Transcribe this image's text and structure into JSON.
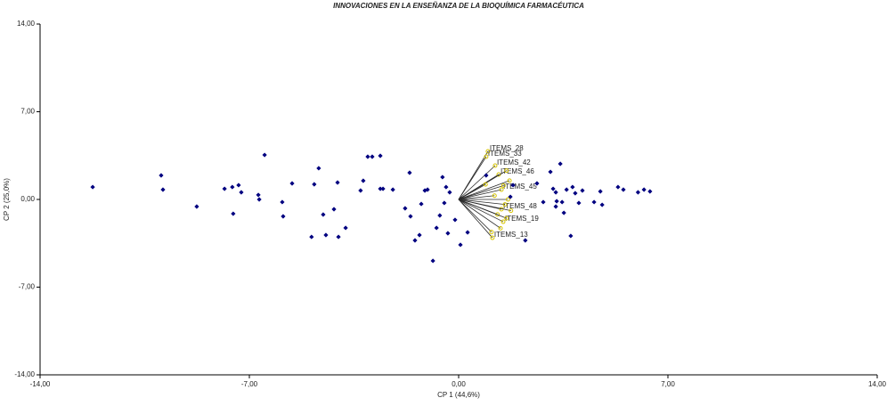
{
  "chart_data": {
    "type": "biplot",
    "title": "INNOVACIONES EN LA ENSEÑANZA DE LA BIOQUÍMICA FARMACÉUTICA",
    "x_label": "CP 1 (44,6%)",
    "y_label": "CP 2 (25,0%)",
    "xlim": [
      -14,
      14
    ],
    "ylim": [
      -14,
      14
    ],
    "xticks": [
      {
        "value": -14,
        "label": "-14,00"
      },
      {
        "value": -7,
        "label": "-7,00"
      },
      {
        "value": 0,
        "label": "0,00"
      },
      {
        "value": 7,
        "label": "7,00"
      },
      {
        "value": 14,
        "label": "14,00"
      }
    ],
    "yticks": [
      {
        "value": -14,
        "label": "-14,00"
      },
      {
        "value": -7,
        "label": "-7,00"
      },
      {
        "value": 0,
        "label": "0,00"
      },
      {
        "value": 7,
        "label": "7,00"
      },
      {
        "value": 14,
        "label": "14,00"
      }
    ],
    "points": {
      "color": "#000080",
      "x": [
        -12.24,
        -9.95,
        -9.89,
        -8.76,
        -7.83,
        -7.57,
        -7.54,
        -7.36,
        -7.27,
        -6.49,
        -6.7,
        -6.67,
        -5.9,
        -5.87,
        -5.57,
        -4.92,
        -4.83,
        -4.68,
        -4.53,
        -4.44,
        -4.17,
        -4.05,
        -4.02,
        -3.78,
        -3.28,
        -3.19,
        -3.04,
        -2.89,
        -2.62,
        -2.62,
        -2.53,
        -2.2,
        -1.79,
        -1.64,
        -1.61,
        -1.46,
        -1.31,
        -1.25,
        -1.13,
        -1.04,
        -0.86,
        -0.74,
        -0.63,
        -0.54,
        -0.48,
        -0.42,
        -0.36,
        -0.3,
        -0.12,
        0.06,
        0.3,
        0.92,
        1.73,
        1.82,
        2.23,
        2.62,
        2.83,
        3.07,
        3.16,
        3.25,
        3.4,
        3.46,
        3.52,
        3.61,
        3.75,
        3.81,
        3.9,
        4.02,
        4.14,
        4.53,
        4.74,
        4.8,
        5.33,
        5.51,
        6.0,
        6.2,
        6.4,
        3.25,
        3.28
      ],
      "y": [
        0.99,
        1.92,
        0.78,
        -0.57,
        0.85,
        0.99,
        -1.14,
        1.14,
        0.57,
        3.55,
        0.36,
        0,
        -0.21,
        -1.35,
        1.28,
        -2.99,
        1.21,
        2.49,
        -1.21,
        -2.84,
        -0.78,
        1.35,
        -2.99,
        -2.27,
        0.71,
        1.49,
        3.41,
        3.41,
        3.48,
        0.85,
        0.85,
        0.78,
        -0.71,
        2.13,
        -1.35,
        -3.27,
        -2.84,
        -0.36,
        0.71,
        0.78,
        -4.9,
        -2.27,
        -1.28,
        1.78,
        -0.28,
        0.99,
        -2.7,
        0.57,
        -1.63,
        -3.62,
        -2.63,
        1.92,
        0.21,
        1.14,
        -3.27,
        1.28,
        -0.21,
        2.2,
        0.85,
        0.57,
        2.84,
        -0.21,
        -1.07,
        0.78,
        -2.91,
        0.99,
        0.5,
        -0.28,
        0.71,
        -0.21,
        0.64,
        -0.43,
        0.99,
        0.78,
        0.57,
        0.78,
        0.64,
        -0.57,
        -0.14
      ]
    },
    "vectors": {
      "color": "#2b2b2b",
      "marker_color": "#d6c400",
      "labels": [
        "ITEMS_28",
        "ITEMS_33",
        "ITEMS_42",
        "ITEMS_46",
        "ITEMS_45",
        "ITEMS_48",
        "ITEMS_19",
        "ITEMS_13",
        null,
        null,
        null,
        null,
        null,
        null,
        null,
        null,
        null,
        null,
        null,
        null
      ],
      "x": [
        0.98,
        0.92,
        1.22,
        1.34,
        1.43,
        1.43,
        1.49,
        1.13,
        1.6,
        1.7,
        1.5,
        1.2,
        1.65,
        1.55,
        1.3,
        1.75,
        1.6,
        1.4,
        1.1,
        0.9
      ],
      "y": [
        3.84,
        3.41,
        2.7,
        1.99,
        0.78,
        -0.78,
        -1.78,
        -3.06,
        2.3,
        1.5,
        1.1,
        0.3,
        0.0,
        -0.4,
        -1.2,
        -0.9,
        -1.5,
        -2.3,
        -2.6,
        1.2
      ]
    }
  }
}
